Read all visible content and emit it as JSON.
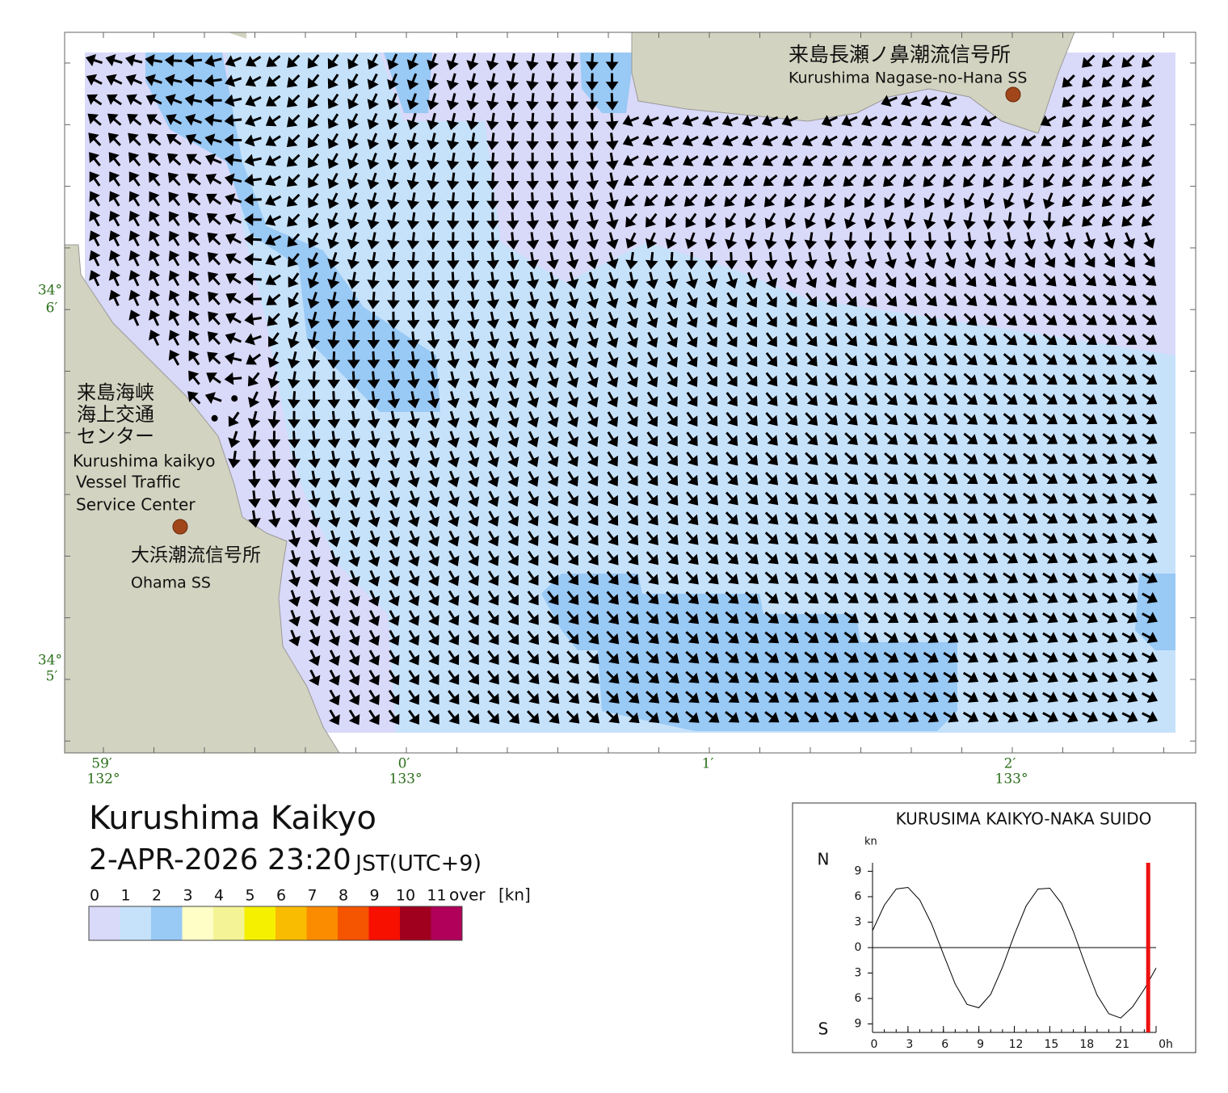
{
  "map": {
    "title": "Kurushima Kaikyo",
    "datetime": "2-APR-2026 23:20",
    "timezone": "JST(UTC+9)",
    "lat_ticks": [
      {
        "deg": "34°",
        "min": "6′"
      },
      {
        "deg": "34°",
        "min": "5′"
      }
    ],
    "lon_ticks": [
      {
        "min": "59′",
        "deg": "132°"
      },
      {
        "min": "0′",
        "deg": "133°"
      },
      {
        "min": "1′"
      },
      {
        "min": "2′",
        "deg": "133°"
      }
    ],
    "stations": [
      {
        "ja": [
          "来島長瀬ノ鼻潮流信号所"
        ],
        "en": [
          "Kurushima Nagase-no-Hana SS"
        ]
      },
      {
        "ja": [
          "来島海峡",
          "海上交通",
          "センター"
        ],
        "en": [
          "Kurushima kaikyo",
          "Vessel Traffic",
          "Service Center"
        ]
      },
      {
        "ja": [
          "大浜潮流信号所"
        ],
        "en": [
          "Ohama SS"
        ]
      }
    ]
  },
  "legend": {
    "labels": [
      "0",
      "1",
      "2",
      "3",
      "4",
      "5",
      "6",
      "7",
      "8",
      "9",
      "10",
      "11"
    ],
    "over": "over",
    "unit": "[kn]",
    "colors": [
      "#d9d9f9",
      "#c6e2fb",
      "#99c9f5",
      "#fefec6",
      "#f4f496",
      "#f5f000",
      "#f9bc00",
      "#fb8c00",
      "#f55400",
      "#f70f00",
      "#a0001e",
      "#b0005a"
    ]
  },
  "tide_chart": {
    "type": "line",
    "title": "KURUSIMA KAIKYO-NAKA SUIDO",
    "unit": "kn",
    "north": "N",
    "south": "S",
    "xlim": [
      0,
      24
    ],
    "ylim": [
      -10,
      10
    ],
    "xticks": [
      0,
      3,
      6,
      9,
      12,
      15,
      18,
      21,
      {
        "value": 24,
        "label": "0h"
      }
    ],
    "yticks": [
      9,
      6,
      3,
      0,
      {
        "value": -3,
        "label": "3"
      },
      {
        "value": -6,
        "label": "6"
      },
      {
        "value": -9,
        "label": "9"
      }
    ],
    "x": [
      0,
      1,
      2,
      3,
      4,
      5,
      6,
      7,
      8,
      9,
      10,
      11,
      12,
      13,
      14,
      15,
      16,
      17,
      18,
      19,
      20,
      21,
      22,
      23,
      24
    ],
    "values": [
      2.0,
      5.0,
      6.9,
      7.1,
      5.6,
      2.8,
      -0.8,
      -4.3,
      -6.7,
      -7.1,
      -5.5,
      -2.3,
      1.5,
      4.9,
      6.9,
      7.0,
      5.2,
      1.9,
      -2.0,
      -5.6,
      -7.8,
      -8.3,
      -7.0,
      -4.9,
      -2.4
    ],
    "now": 23.33,
    "now_color": "#ee1111",
    "color": "#000000"
  }
}
